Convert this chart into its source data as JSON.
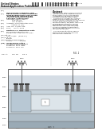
{
  "bg_color": "#ffffff",
  "text_color": "#222222",
  "dark_gray": "#555555",
  "medium_gray": "#888888",
  "light_gray": "#cccccc",
  "very_light_gray": "#e8e8e8",
  "blue_gray_light": "#c5cfd8",
  "blue_gray_mid": "#9aaab8",
  "blue_gray_dark": "#7a8fa0",
  "substrate_top": "#c8d4dc",
  "substrate_mid": "#b0bec8",
  "substrate_bot": "#9aaab5",
  "contact_fill": "#707070",
  "metal_dark": "#404040",
  "wire_color": "#303030",
  "oxide_color": "#d5dde5",
  "white": "#ffffff"
}
